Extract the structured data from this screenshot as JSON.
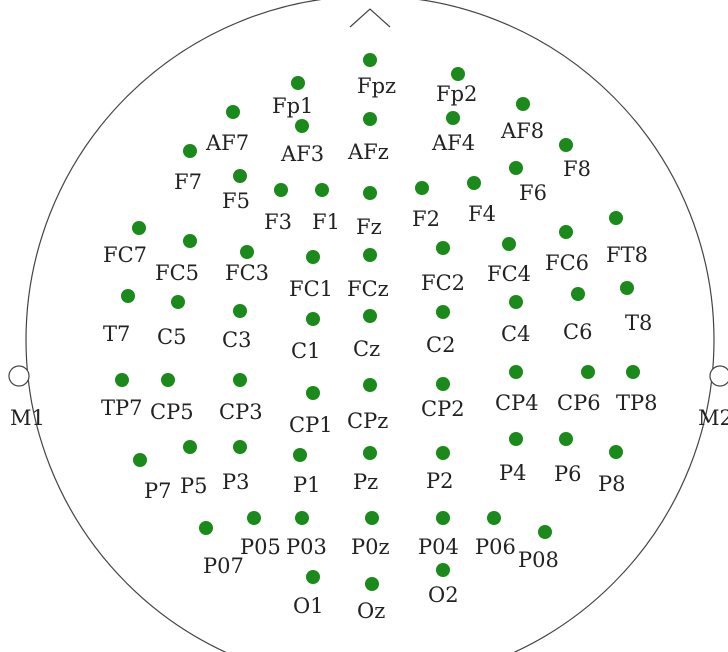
{
  "colors": {
    "electrode": "#1a8a1a",
    "outline": "#444444",
    "text": "#222222"
  },
  "mastoids": [
    {
      "label": "M1"
    },
    {
      "label": "M2"
    }
  ],
  "electrodes": [
    "Fpz",
    "Fp1",
    "Fp2",
    "AF7",
    "AF3",
    "AFz",
    "AF4",
    "AF8",
    "F7",
    "F5",
    "F3",
    "F1",
    "Fz",
    "F2",
    "F4",
    "F6",
    "F8",
    "FC7",
    "FC5",
    "FC3",
    "FC1",
    "FCz",
    "FC2",
    "FC4",
    "FC6",
    "FT8",
    "T7",
    "C5",
    "C3",
    "C1",
    "Cz",
    "C2",
    "C4",
    "C6",
    "T8",
    "TP7",
    "CP5",
    "CP3",
    "CP1",
    "CPz",
    "CP2",
    "CP4",
    "CP6",
    "TP8",
    "P7",
    "P5",
    "P3",
    "P1",
    "Pz",
    "P2",
    "P4",
    "P6",
    "P8",
    "P07",
    "P05",
    "P03",
    "P0z",
    "P04",
    "P06",
    "P08",
    "O1",
    "Oz",
    "O2"
  ]
}
